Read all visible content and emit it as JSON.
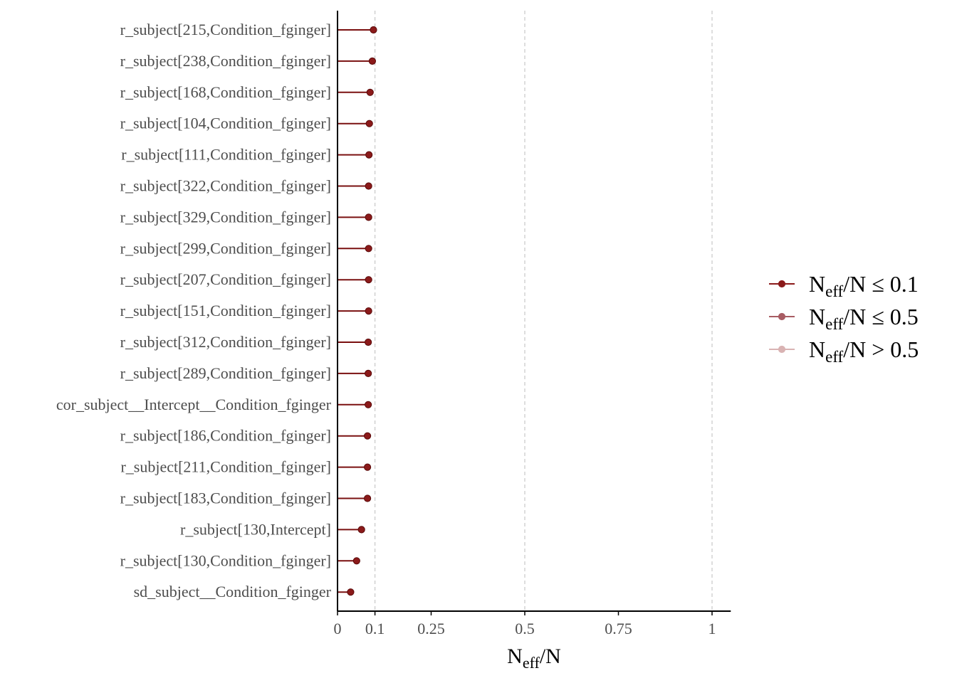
{
  "chart_data": {
    "type": "lollipop",
    "xlabel": {
      "main": "N",
      "sub": "eff",
      "rest": "/N"
    },
    "xlim": [
      0,
      1.05
    ],
    "xticks": [
      0,
      0.1,
      0.25,
      0.5,
      0.75,
      1
    ],
    "xtick_labels": [
      "0",
      "0.1",
      "0.25",
      "0.5",
      "0.75",
      "1"
    ],
    "vlines": [
      0.1,
      0.5,
      1
    ],
    "grid": false,
    "legend_position": "right",
    "legend": [
      {
        "main": "N",
        "sub": "eff",
        "rest": "/N ≤ 0.1",
        "color": "#8b1a1a"
      },
      {
        "main": "N",
        "sub": "eff",
        "rest": "/N ≤ 0.5",
        "color": "#a85c63"
      },
      {
        "main": "N",
        "sub": "eff",
        "rest": "/N > 0.5",
        "color": "#d9b3b3"
      }
    ],
    "color_line": "#7a1010",
    "color_point": "#8b1a1a",
    "parameters": [
      "r_subject[215,Condition_fginger]",
      "r_subject[238,Condition_fginger]",
      "r_subject[168,Condition_fginger]",
      "r_subject[104,Condition_fginger]",
      "r_subject[111,Condition_fginger]",
      "r_subject[322,Condition_fginger]",
      "r_subject[329,Condition_fginger]",
      "r_subject[299,Condition_fginger]",
      "r_subject[207,Condition_fginger]",
      "r_subject[151,Condition_fginger]",
      "r_subject[312,Condition_fginger]",
      "r_subject[289,Condition_fginger]",
      "cor_subject__Intercept__Condition_fginger",
      "r_subject[186,Condition_fginger]",
      "r_subject[211,Condition_fginger]",
      "r_subject[183,Condition_fginger]",
      "r_subject[130,Intercept]",
      "r_subject[130,Condition_fginger]",
      "sd_subject__Condition_fginger"
    ],
    "values": [
      0.096,
      0.093,
      0.087,
      0.085,
      0.084,
      0.083,
      0.083,
      0.083,
      0.083,
      0.083,
      0.082,
      0.082,
      0.082,
      0.08,
      0.08,
      0.08,
      0.064,
      0.051,
      0.035
    ]
  }
}
